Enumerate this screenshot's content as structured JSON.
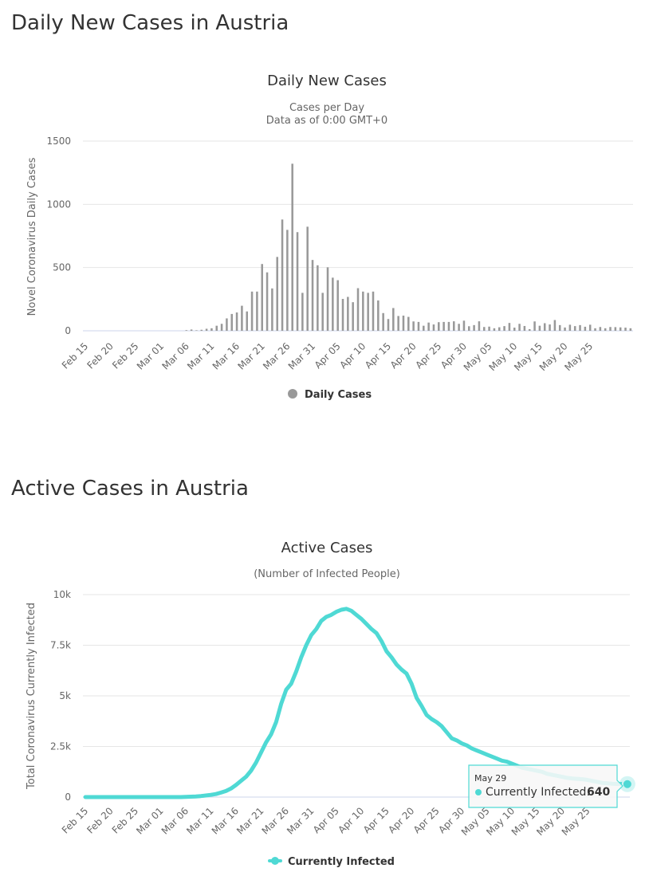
{
  "page": {
    "heading_daily": "Daily New Cases in Austria",
    "heading_active": "Active Cases in Austria"
  },
  "colors": {
    "bar": "#999999",
    "line": "#4fd9d4",
    "grid": "#e6e6e6",
    "text": "#333333",
    "axis_label": "#666666"
  },
  "chart_data": [
    {
      "type": "bar",
      "title": "Daily New Cases",
      "subtitle_line1": "Cases per Day",
      "subtitle_line2": "Data as of 0:00 GMT+0",
      "ylabel": "Novel Coronavirus Daily Cases",
      "xlabel": "",
      "ylim": [
        0,
        1500
      ],
      "yticks": [
        0,
        500,
        1000,
        1500
      ],
      "ytick_labels": [
        "0",
        "500",
        "1000",
        "1500"
      ],
      "tick_labels": [
        "Feb 15",
        "Feb 20",
        "Feb 25",
        "Mar 01",
        "Mar 06",
        "Mar 11",
        "Mar 16",
        "Mar 21",
        "Mar 26",
        "Mar 31",
        "Apr 05",
        "Apr 10",
        "Apr 15",
        "Apr 20",
        "Apr 25",
        "Apr 30",
        "May 05",
        "May 10",
        "May 15",
        "May 20",
        "May 25"
      ],
      "legend": "Daily Cases",
      "start_date": "Feb 15",
      "values": [
        0,
        0,
        0,
        0,
        0,
        0,
        0,
        0,
        0,
        0,
        0,
        0,
        0,
        0,
        0,
        0,
        0,
        0,
        0,
        0,
        5,
        10,
        4,
        8,
        16,
        20,
        40,
        55,
        98,
        133,
        145,
        198,
        153,
        310,
        310,
        528,
        462,
        335,
        584,
        880,
        798,
        1321,
        780,
        300,
        823,
        560,
        518,
        300,
        502,
        420,
        400,
        252,
        268,
        226,
        337,
        310,
        300,
        310,
        240,
        140,
        93,
        180,
        117,
        120,
        110,
        74,
        70,
        40,
        65,
        50,
        68,
        70,
        70,
        75,
        55,
        80,
        36,
        45,
        75,
        30,
        33,
        20,
        28,
        37,
        62,
        25,
        55,
        38,
        13,
        74,
        40,
        60,
        50,
        85,
        45,
        26,
        48,
        37,
        45,
        32,
        48,
        20,
        30,
        20,
        30,
        29,
        27,
        25,
        20
      ]
    },
    {
      "type": "line",
      "title": "Active Cases",
      "subtitle": "(Number of Infected People)",
      "ylabel": "Total Coronavirus Currently Infected",
      "xlabel": "",
      "ylim": [
        0,
        10000
      ],
      "yticks": [
        0,
        2500,
        5000,
        7500,
        10000
      ],
      "ytick_labels": [
        "0",
        "2.5k",
        "5k",
        "7.5k",
        "10k"
      ],
      "tick_labels": [
        "Feb 15",
        "Feb 20",
        "Feb 25",
        "Mar 01",
        "Mar 06",
        "Mar 11",
        "Mar 16",
        "Mar 21",
        "Mar 26",
        "Mar 31",
        "Apr 05",
        "Apr 10",
        "Apr 15",
        "Apr 20",
        "Apr 25",
        "Apr 30",
        "May 05",
        "May 10",
        "May 15",
        "May 20",
        "May 25"
      ],
      "legend": "Currently Infected",
      "series": [
        {
          "name": "Currently Infected",
          "values": [
            0,
            0,
            0,
            0,
            0,
            0,
            0,
            0,
            0,
            0,
            0,
            0,
            0,
            0,
            0,
            0,
            0,
            0,
            0,
            0,
            10,
            20,
            30,
            50,
            80,
            110,
            150,
            220,
            300,
            420,
            600,
            800,
            1000,
            1300,
            1700,
            2200,
            2700,
            3100,
            3700,
            4600,
            5300,
            5600,
            6200,
            6900,
            7500,
            8000,
            8300,
            8700,
            8900,
            9000,
            9150,
            9250,
            9300,
            9200,
            9000,
            8800,
            8550,
            8300,
            8100,
            7700,
            7200,
            6900,
            6550,
            6300,
            6100,
            5600,
            4900,
            4500,
            4050,
            3850,
            3700,
            3500,
            3200,
            2900,
            2800,
            2650,
            2550,
            2400,
            2300,
            2200,
            2100,
            2000,
            1900,
            1800,
            1750,
            1650,
            1550,
            1450,
            1400,
            1350,
            1300,
            1250,
            1150,
            1100,
            1050,
            1000,
            950,
            920,
            900,
            880,
            850,
            800,
            750,
            700,
            680,
            660,
            650,
            645,
            640
          ]
        }
      ],
      "tooltip": {
        "date": "May 29",
        "label": "Currently Infected:",
        "value": "640"
      }
    }
  ]
}
